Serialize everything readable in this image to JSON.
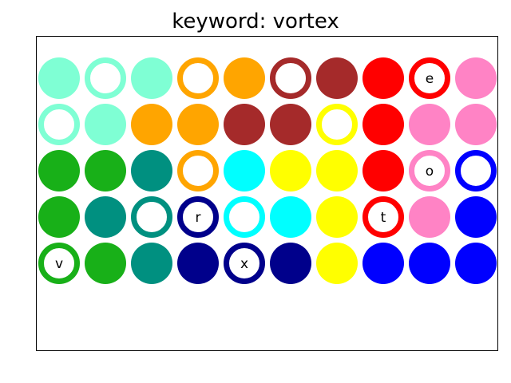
{
  "title": "keyword: vortex",
  "colors": {
    "aquamarine": "#7fffd4",
    "orange": "#ffa500",
    "brown": "#a52a2a",
    "red": "#ff0000",
    "pink": "#ff83c5",
    "green": "#18b018",
    "teal": "#009080",
    "cyan": "#00ffff",
    "yellow": "#ffff00",
    "navy": "#00008b",
    "blue": "#0000ff"
  },
  "rows": [
    [
      {
        "color": "aquamarine",
        "style": "filled"
      },
      {
        "color": "aquamarine",
        "style": "ring"
      },
      {
        "color": "aquamarine",
        "style": "filled"
      },
      {
        "color": "orange",
        "style": "ring"
      },
      {
        "color": "orange",
        "style": "filled"
      },
      {
        "color": "brown",
        "style": "ring"
      },
      {
        "color": "brown",
        "style": "filled"
      },
      {
        "color": "red",
        "style": "filled"
      },
      {
        "color": "red",
        "style": "ring",
        "letter": "e"
      },
      {
        "color": "pink",
        "style": "filled"
      }
    ],
    [
      {
        "color": "aquamarine",
        "style": "ring"
      },
      {
        "color": "aquamarine",
        "style": "filled"
      },
      {
        "color": "orange",
        "style": "filled"
      },
      {
        "color": "orange",
        "style": "filled"
      },
      {
        "color": "brown",
        "style": "filled"
      },
      {
        "color": "brown",
        "style": "filled"
      },
      {
        "color": "yellow",
        "style": "ring"
      },
      {
        "color": "red",
        "style": "filled"
      },
      {
        "color": "pink",
        "style": "filled"
      },
      {
        "color": "pink",
        "style": "filled"
      }
    ],
    [
      {
        "color": "green",
        "style": "filled"
      },
      {
        "color": "green",
        "style": "filled"
      },
      {
        "color": "teal",
        "style": "filled"
      },
      {
        "color": "orange",
        "style": "ring"
      },
      {
        "color": "cyan",
        "style": "filled"
      },
      {
        "color": "yellow",
        "style": "filled"
      },
      {
        "color": "yellow",
        "style": "filled"
      },
      {
        "color": "red",
        "style": "filled"
      },
      {
        "color": "pink",
        "style": "ring",
        "letter": "o"
      },
      {
        "color": "blue",
        "style": "ring"
      }
    ],
    [
      {
        "color": "green",
        "style": "filled"
      },
      {
        "color": "teal",
        "style": "filled"
      },
      {
        "color": "teal",
        "style": "ring"
      },
      {
        "color": "navy",
        "style": "ring",
        "letter": "r"
      },
      {
        "color": "cyan",
        "style": "ring"
      },
      {
        "color": "cyan",
        "style": "filled"
      },
      {
        "color": "yellow",
        "style": "filled"
      },
      {
        "color": "red",
        "style": "ring",
        "letter": "t"
      },
      {
        "color": "pink",
        "style": "filled"
      },
      {
        "color": "blue",
        "style": "filled"
      }
    ],
    [
      {
        "color": "green",
        "style": "ring",
        "letter": "v"
      },
      {
        "color": "green",
        "style": "filled"
      },
      {
        "color": "teal",
        "style": "filled"
      },
      {
        "color": "navy",
        "style": "filled"
      },
      {
        "color": "navy",
        "style": "ring",
        "letter": "x"
      },
      {
        "color": "navy",
        "style": "filled"
      },
      {
        "color": "yellow",
        "style": "filled"
      },
      {
        "color": "blue",
        "style": "filled"
      },
      {
        "color": "blue",
        "style": "filled"
      },
      {
        "color": "blue",
        "style": "filled"
      }
    ]
  ]
}
